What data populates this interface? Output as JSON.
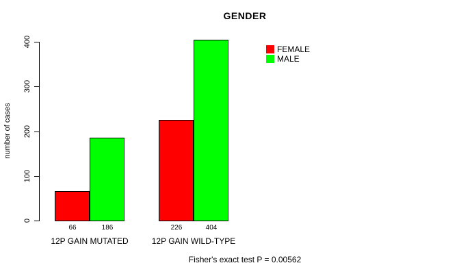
{
  "chart_data": {
    "type": "bar",
    "title": "GENDER",
    "ylabel": "number of cases",
    "xlabel": "",
    "categories": [
      "12P GAIN MUTATED",
      "12P GAIN WILD-TYPE"
    ],
    "series": [
      {
        "name": "FEMALE",
        "color": "#FF0000",
        "values": [
          66,
          226
        ]
      },
      {
        "name": "MALE",
        "color": "#00FF00",
        "values": [
          186,
          404
        ]
      }
    ],
    "bar_labels": [
      [
        66,
        186
      ],
      [
        226,
        404
      ]
    ],
    "yticks": [
      0,
      100,
      200,
      300,
      400
    ],
    "ylim": [
      0,
      400
    ],
    "grid": false,
    "legend_position": "top-right",
    "annotation": "Fisher's exact test P = 0.00562"
  },
  "colors": {
    "axis": "#000000",
    "bar_border": "#000000",
    "background": "#FFFFFF"
  }
}
